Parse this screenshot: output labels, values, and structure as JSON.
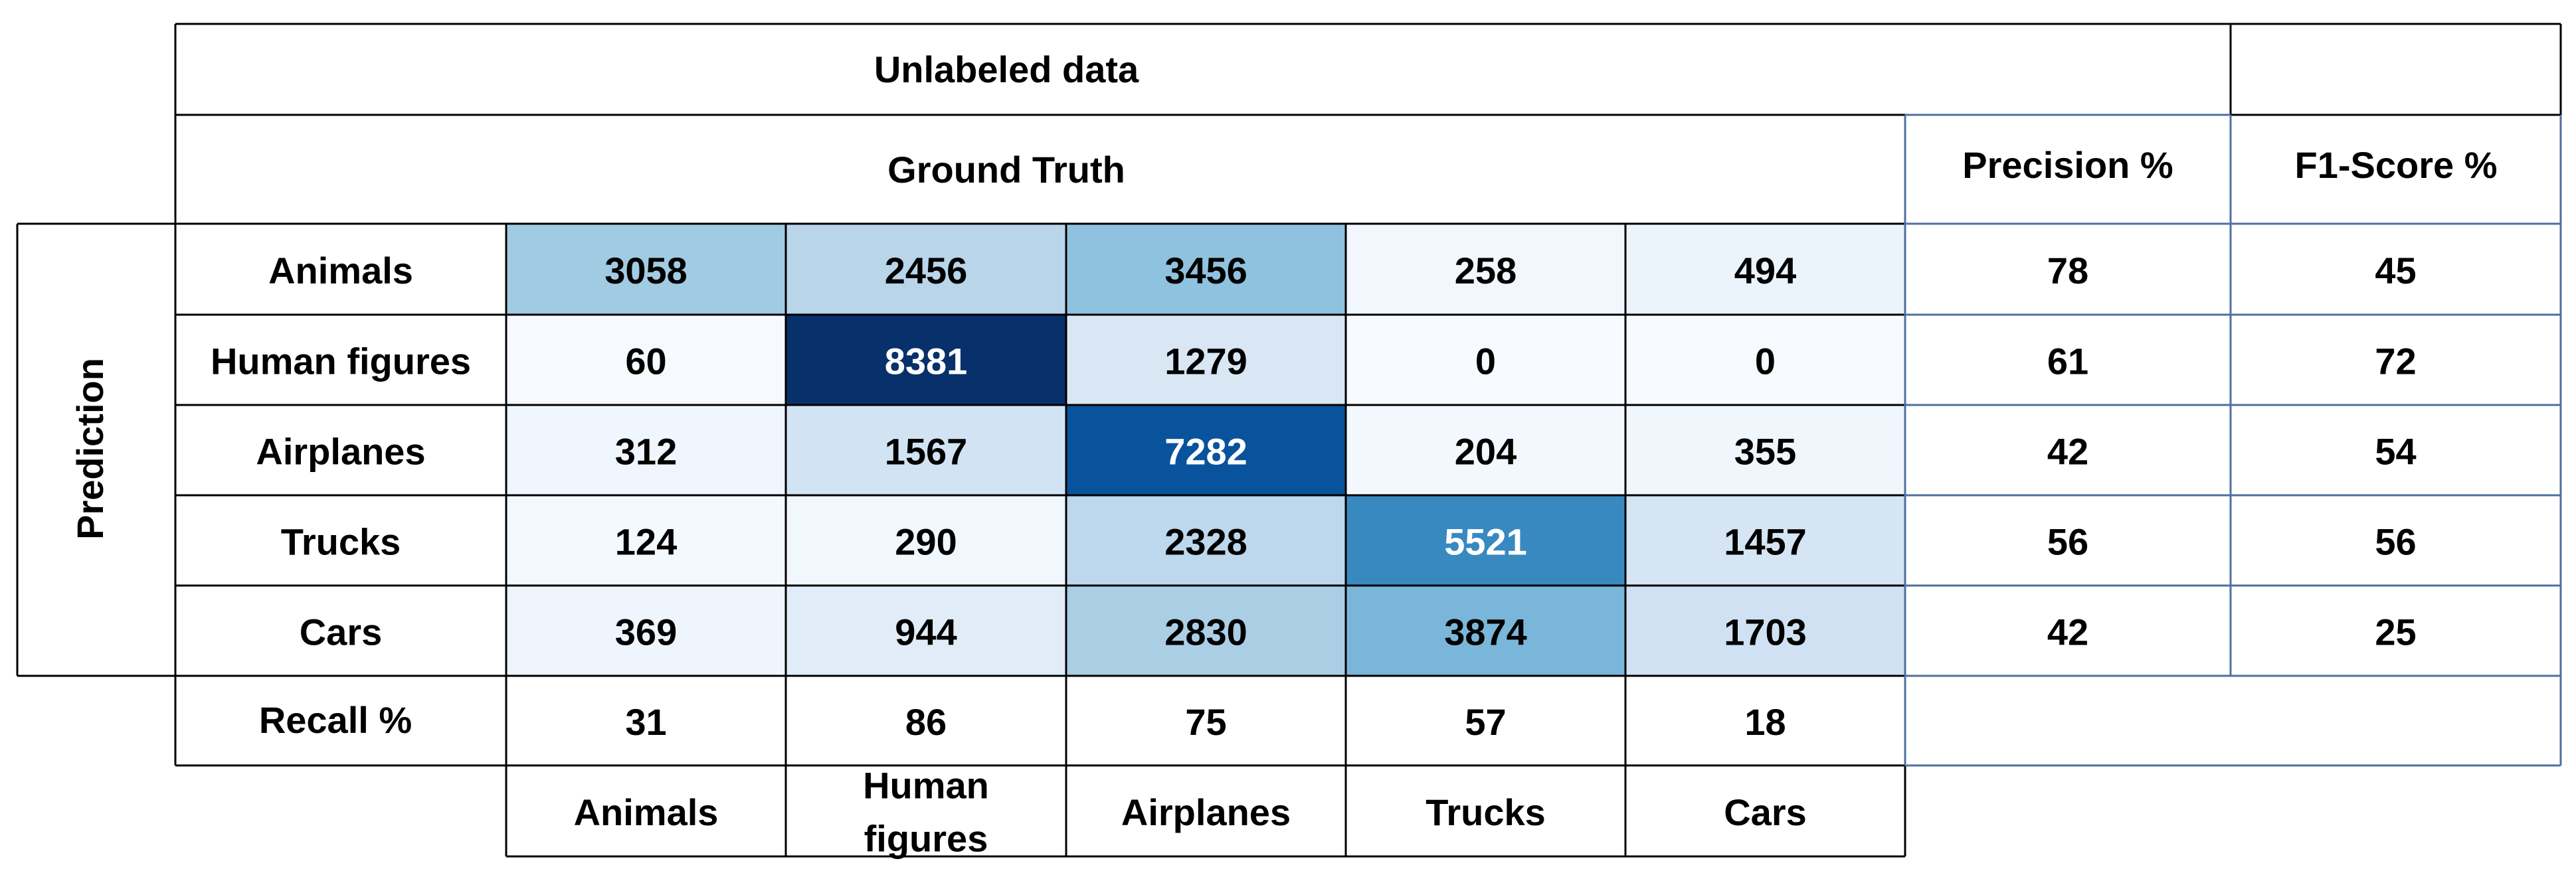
{
  "chart_data": {
    "type": "heatmap",
    "title": "Unlabeled data",
    "column_group_label": "Ground Truth",
    "row_group_label": "Prediction",
    "rows": [
      "Animals",
      "Human figures",
      "Airplanes",
      "Trucks",
      "Cars"
    ],
    "columns": [
      "Animals",
      "Human figures",
      "Airplanes",
      "Trucks",
      "Cars"
    ],
    "column_labels_display": [
      "Animals",
      "Human\nfigures",
      "Airplanes",
      "Trucks",
      "Cars"
    ],
    "matrix": [
      [
        3058,
        2456,
        3456,
        258,
        494
      ],
      [
        60,
        8381,
        1279,
        0,
        0
      ],
      [
        312,
        1567,
        7282,
        204,
        355
      ],
      [
        124,
        290,
        2328,
        5521,
        1457
      ],
      [
        369,
        944,
        2830,
        3874,
        1703
      ]
    ],
    "precision_header": "Precision %",
    "f1_header": "F1-Score %",
    "precision": [
      78,
      61,
      42,
      56,
      42
    ],
    "f1_score": [
      45,
      72,
      54,
      56,
      25
    ],
    "recall_label": "Recall %",
    "recall": [
      31,
      86,
      75,
      57,
      18
    ],
    "colormap": "Blues",
    "colors": {
      "low": "#f7fbff",
      "high": "#08306b",
      "border_dark": "#000000",
      "border_blue": "#4f6fa0",
      "text_dark": "#000000",
      "text_light": "#ffffff"
    }
  }
}
